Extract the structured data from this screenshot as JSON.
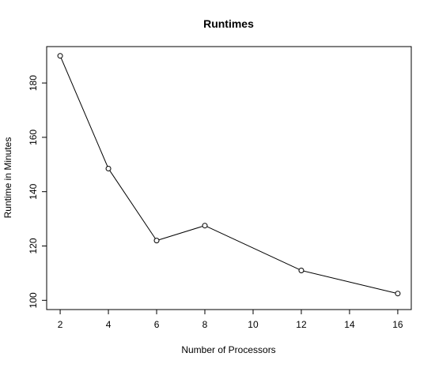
{
  "chart_data": {
    "type": "line",
    "title": "Runtimes",
    "xlabel": "Number of Processors",
    "ylabel": "Runtime in Minutes",
    "x": [
      2,
      4,
      6,
      8,
      12,
      16
    ],
    "series": [
      {
        "name": "Runtime",
        "values": [
          190,
          148.5,
          122,
          127.5,
          111,
          102.5
        ],
        "marker": "open-circle",
        "color": "#000000"
      }
    ],
    "xticks": [
      2,
      4,
      6,
      8,
      10,
      12,
      14,
      16
    ],
    "yticks": [
      100,
      120,
      140,
      160,
      180
    ],
    "xlim": [
      1.44,
      16.56
    ],
    "ylim": [
      96.6,
      193.4
    ],
    "grid": false,
    "legend": "none"
  }
}
